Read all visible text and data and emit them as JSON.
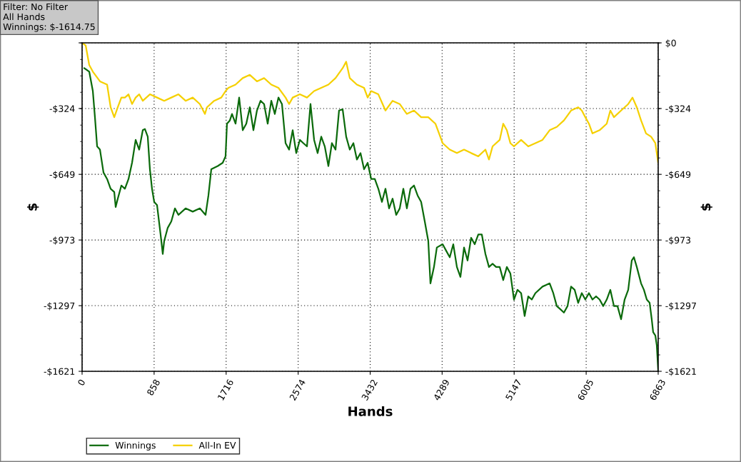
{
  "chart_data": {
    "type": "line",
    "xlabel": "Hands",
    "ylabel": "$",
    "y2label": "$",
    "annotations": [
      "Filter: No Filter\nAll Hands\nWinnings: $-1614.75"
    ],
    "xlim": [
      0,
      6863
    ],
    "xticks": [
      0,
      858,
      1716,
      2574,
      3432,
      4289,
      5147,
      6005,
      6863
    ],
    "ylim": [
      -1621,
      0
    ],
    "yticks": [
      {
        "value": 0,
        "label": null
      },
      {
        "value": -324,
        "label": "-$324"
      },
      {
        "value": -649,
        "label": "-$649"
      },
      {
        "value": -973,
        "label": "-$973"
      },
      {
        "value": -1297,
        "label": "-$1297"
      },
      {
        "value": -1621,
        "label": "-$1621"
      }
    ],
    "y2lim": [
      -1621,
      0
    ],
    "y2ticks": [
      {
        "value": 0,
        "label": "$0"
      },
      {
        "value": -324,
        "label": "-$324"
      },
      {
        "value": -649,
        "label": "-$649"
      },
      {
        "value": -973,
        "label": "-$973"
      },
      {
        "value": -1297,
        "label": "-$1297"
      },
      {
        "value": -1621,
        "label": "-$1621"
      }
    ],
    "grid": true,
    "legend": "bottom left",
    "line_style": "solid",
    "series": [
      {
        "name": "Winnings",
        "color": "#0b6a0b",
        "x": [
          26,
          85,
          128,
          153,
          179,
          213,
          255,
          298,
          340,
          383,
          400,
          425,
          468,
          510,
          553,
          595,
          638,
          680,
          723,
          748,
          782,
          808,
          833,
          859,
          893,
          935,
          961,
          978,
          1020,
          1063,
          1106,
          1148,
          1233,
          1318,
          1403,
          1471,
          1505,
          1539,
          1616,
          1675,
          1709,
          1726,
          1760,
          1786,
          1828,
          1871,
          1914,
          1956,
          1998,
          2041,
          2083,
          2126,
          2168,
          2211,
          2254,
          2296,
          2339,
          2381,
          2424,
          2466,
          2509,
          2551,
          2594,
          2636,
          2679,
          2721,
          2764,
          2806,
          2849,
          2891,
          2934,
          2976,
          3019,
          3061,
          3104,
          3146,
          3189,
          3232,
          3274,
          3317,
          3359,
          3402,
          3444,
          3487,
          3529,
          3572,
          3614,
          3657,
          3699,
          3742,
          3784,
          3827,
          3869,
          3912,
          3954,
          3997,
          4039,
          4082,
          4124,
          4150,
          4192,
          4226,
          4295,
          4337,
          4380,
          4422,
          4465,
          4507,
          4550,
          4592,
          4635,
          4677,
          4720,
          4762,
          4805,
          4847,
          4890,
          4932,
          4975,
          5017,
          5060,
          5102,
          5145,
          5187,
          5230,
          5272,
          5315,
          5357,
          5400,
          5485,
          5570,
          5613,
          5655,
          5698,
          5740,
          5783,
          5825,
          5868,
          5910,
          5953,
          5995,
          6038,
          6080,
          6123,
          6165,
          6208,
          6250,
          6293,
          6336,
          6378,
          6421,
          6463,
          6506,
          6548,
          6574,
          6608,
          6659,
          6693,
          6727,
          6761,
          6786,
          6803,
          6829,
          6846,
          6863
        ],
        "values": [
          -125,
          -142,
          -238,
          -367,
          -511,
          -527,
          -640,
          -672,
          -720,
          -736,
          -810,
          -769,
          -704,
          -720,
          -672,
          -592,
          -479,
          -527,
          -431,
          -425,
          -463,
          -624,
          -720,
          -785,
          -801,
          -946,
          -1042,
          -978,
          -913,
          -881,
          -817,
          -849,
          -817,
          -833,
          -817,
          -849,
          -753,
          -624,
          -608,
          -592,
          -560,
          -399,
          -383,
          -351,
          -399,
          -270,
          -431,
          -399,
          -318,
          -431,
          -334,
          -286,
          -302,
          -399,
          -286,
          -351,
          -270,
          -302,
          -495,
          -527,
          -431,
          -544,
          -479,
          -495,
          -511,
          -302,
          -479,
          -544,
          -463,
          -511,
          -608,
          -495,
          -527,
          -334,
          -328,
          -463,
          -527,
          -495,
          -576,
          -544,
          -624,
          -592,
          -672,
          -672,
          -720,
          -785,
          -720,
          -817,
          -769,
          -849,
          -817,
          -720,
          -817,
          -720,
          -704,
          -753,
          -785,
          -881,
          -978,
          -1187,
          -1106,
          -1010,
          -994,
          -1026,
          -1058,
          -994,
          -1106,
          -1155,
          -1010,
          -1074,
          -962,
          -994,
          -946,
          -946,
          -1042,
          -1106,
          -1090,
          -1106,
          -1106,
          -1171,
          -1106,
          -1138,
          -1267,
          -1219,
          -1235,
          -1348,
          -1251,
          -1267,
          -1235,
          -1203,
          -1187,
          -1235,
          -1299,
          -1315,
          -1331,
          -1299,
          -1203,
          -1219,
          -1283,
          -1235,
          -1267,
          -1235,
          -1267,
          -1251,
          -1267,
          -1299,
          -1267,
          -1219,
          -1299,
          -1299,
          -1364,
          -1267,
          -1219,
          -1074,
          -1058,
          -1106,
          -1187,
          -1219,
          -1267,
          -1283,
          -1364,
          -1428,
          -1444,
          -1492,
          -1615
        ]
      },
      {
        "name": "All-In EV",
        "color": "#f5d000",
        "x": [
          0,
          43,
          85,
          128,
          213,
          298,
          340,
          383,
          425,
          468,
          510,
          553,
          595,
          638,
          680,
          723,
          808,
          893,
          978,
          1063,
          1148,
          1233,
          1318,
          1403,
          1463,
          1488,
          1573,
          1658,
          1709,
          1743,
          1828,
          1913,
          1998,
          2083,
          2168,
          2254,
          2339,
          2424,
          2466,
          2509,
          2594,
          2679,
          2764,
          2849,
          2934,
          3019,
          3104,
          3146,
          3189,
          3274,
          3359,
          3402,
          3444,
          3529,
          3614,
          3699,
          3784,
          3869,
          3954,
          4039,
          4124,
          4209,
          4295,
          4380,
          4465,
          4550,
          4635,
          4720,
          4805,
          4847,
          4890,
          4975,
          5017,
          5060,
          5102,
          5145,
          5230,
          5315,
          5400,
          5485,
          5570,
          5655,
          5740,
          5825,
          5910,
          5953,
          5995,
          6038,
          6080,
          6165,
          6250,
          6293,
          6336,
          6421,
          6506,
          6557,
          6608,
          6659,
          6718,
          6778,
          6829,
          6863
        ],
        "values": [
          0,
          -13,
          -109,
          -142,
          -190,
          -206,
          -318,
          -367,
          -318,
          -270,
          -270,
          -254,
          -302,
          -270,
          -254,
          -286,
          -254,
          -270,
          -286,
          -270,
          -254,
          -286,
          -270,
          -302,
          -351,
          -318,
          -286,
          -270,
          -238,
          -222,
          -206,
          -174,
          -158,
          -190,
          -174,
          -206,
          -222,
          -270,
          -302,
          -270,
          -254,
          -270,
          -238,
          -222,
          -206,
          -174,
          -125,
          -93,
          -174,
          -206,
          -222,
          -270,
          -238,
          -254,
          -334,
          -286,
          -302,
          -351,
          -334,
          -367,
          -367,
          -399,
          -495,
          -527,
          -544,
          -527,
          -544,
          -560,
          -527,
          -576,
          -511,
          -479,
          -399,
          -431,
          -495,
          -511,
          -479,
          -511,
          -495,
          -479,
          -431,
          -415,
          -383,
          -334,
          -318,
          -334,
          -367,
          -399,
          -447,
          -431,
          -399,
          -334,
          -367,
          -334,
          -302,
          -270,
          -318,
          -383,
          -447,
          -463,
          -495,
          -592
        ]
      }
    ]
  }
}
